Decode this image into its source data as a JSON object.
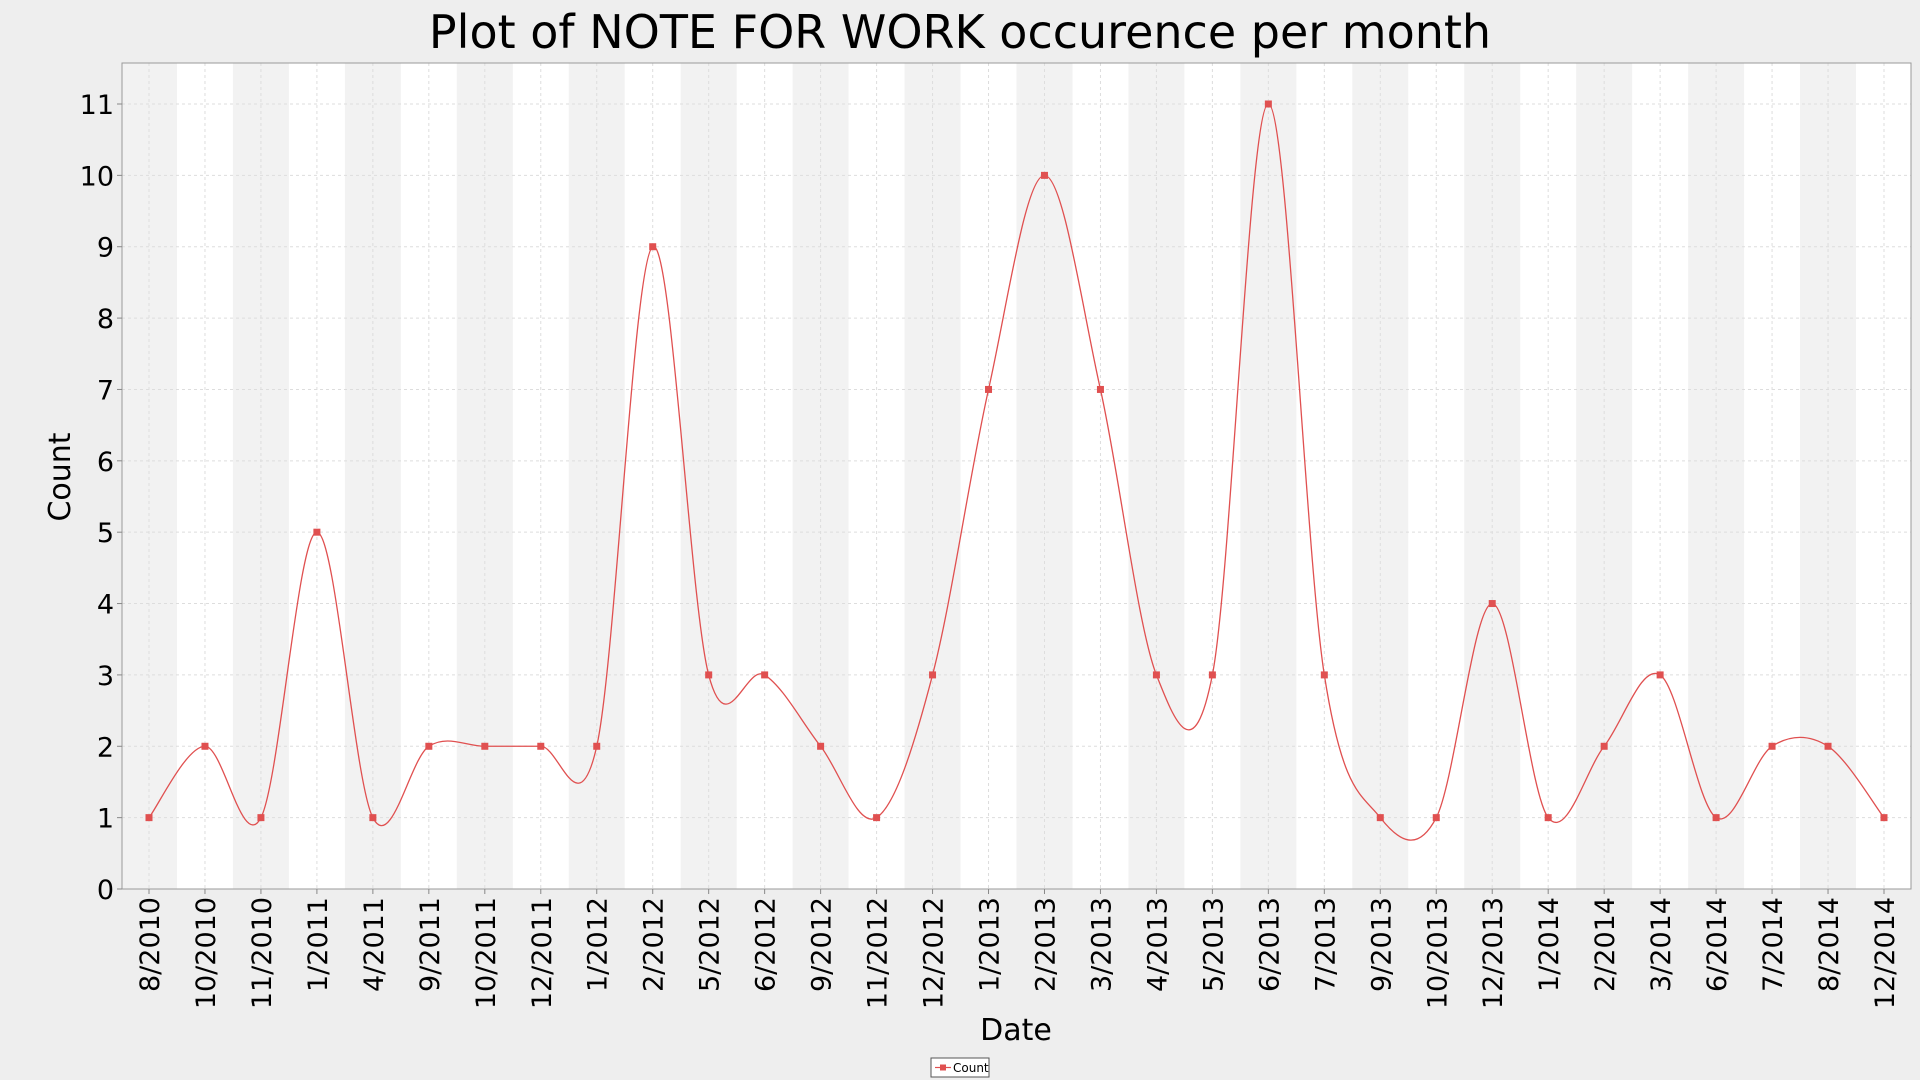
{
  "chart_data": {
    "type": "line",
    "title": "Plot of NOTE FOR WORK occurence per month",
    "xlabel": "Date",
    "ylabel": "Count",
    "ylim": [
      0,
      11
    ],
    "yticks": [
      "0",
      "1",
      "2",
      "3",
      "4",
      "5",
      "6",
      "7",
      "8",
      "9",
      "10",
      "11"
    ],
    "grid": true,
    "smoothed": true,
    "legend_position": "bottom-center",
    "categories": [
      "8/2010",
      "10/2010",
      "11/2010",
      "1/2011",
      "4/2011",
      "9/2011",
      "10/2011",
      "12/2011",
      "1/2012",
      "2/2012",
      "5/2012",
      "6/2012",
      "9/2012",
      "11/2012",
      "12/2012",
      "1/2013",
      "2/2013",
      "3/2013",
      "4/2013",
      "5/2013",
      "6/2013",
      "7/2013",
      "9/2013",
      "10/2013",
      "12/2013",
      "1/2014",
      "2/2014",
      "3/2014",
      "6/2014",
      "7/2014",
      "8/2014",
      "12/2014"
    ],
    "series": [
      {
        "name": "Count",
        "color": "#e05050",
        "values": [
          1,
          2,
          1,
          5,
          1,
          2,
          2,
          2,
          2,
          9,
          3,
          3,
          2,
          1,
          3,
          7,
          10,
          7,
          3,
          3,
          11,
          3,
          1,
          1,
          4,
          1,
          2,
          3,
          1,
          2,
          2,
          1
        ]
      }
    ],
    "colors": {
      "background": "#eeeeee",
      "plot_background": "#ffffff",
      "band_alternate": "#f2f2f2",
      "gridline": "#dddddd",
      "axis": "#888888",
      "series": "#e05050"
    }
  }
}
